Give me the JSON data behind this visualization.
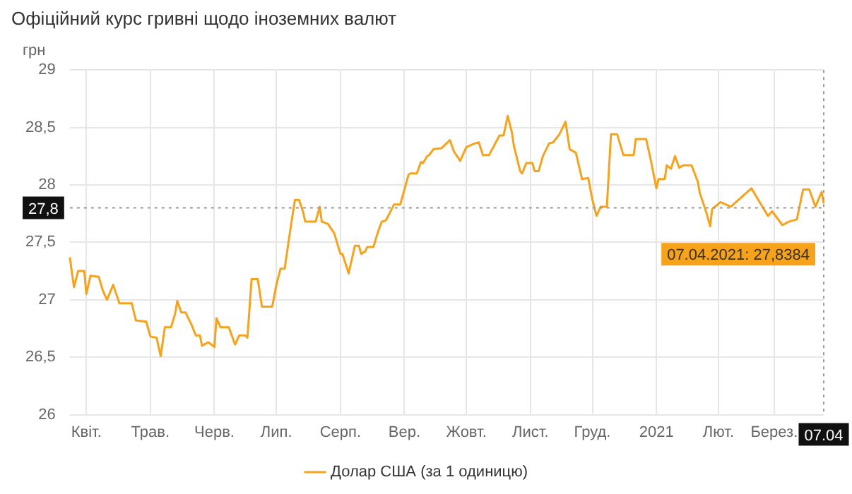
{
  "chart_data": {
    "type": "line",
    "title": "Офіційний курс гривні щодо іноземних валют",
    "ylabel": "грн",
    "categories": [
      null,
      null,
      null,
      null,
      null,
      null,
      null,
      null,
      "Квіт.",
      null,
      null,
      null,
      null,
      null,
      null,
      null,
      null,
      null,
      null,
      null,
      null,
      null,
      null,
      null,
      null,
      null,
      null,
      null,
      null,
      null,
      null,
      null,
      null,
      null,
      null,
      null,
      null,
      null,
      null,
      "Трав.",
      null,
      null,
      null,
      null,
      null,
      null,
      null,
      null,
      null,
      null,
      null,
      null,
      null,
      null,
      null,
      null,
      null,
      null,
      null,
      null,
      null,
      null,
      null,
      null,
      null,
      null,
      null,
      null,
      null,
      null,
      "Черв.",
      null,
      null,
      null,
      null,
      null,
      null,
      null,
      null,
      null,
      null,
      null,
      null,
      null,
      null,
      null,
      null,
      null,
      null,
      null,
      null,
      null,
      null,
      null,
      null,
      null,
      null,
      null,
      null,
      null,
      "Лип.",
      null,
      null,
      null,
      null,
      null,
      null,
      null,
      null,
      null,
      null,
      null,
      null,
      null,
      null,
      null,
      null,
      null,
      null,
      null,
      null,
      null,
      null,
      null,
      null,
      null,
      null,
      null,
      null,
      null,
      null,
      "Серп.",
      null,
      null,
      null,
      null,
      null,
      null,
      null,
      null,
      null,
      null,
      null,
      null,
      null,
      null,
      null,
      null,
      null,
      null,
      null,
      null,
      null,
      null,
      null,
      null,
      null,
      null,
      null,
      null,
      null,
      null,
      "Вер.",
      null,
      null,
      null,
      null,
      null,
      null,
      null,
      null,
      null,
      null,
      null,
      null,
      null,
      null,
      null,
      null,
      null,
      null,
      null,
      null,
      null,
      null,
      null,
      null,
      null,
      null,
      null,
      null,
      null,
      "Жовт.",
      null,
      null,
      null,
      null,
      null,
      null,
      null,
      null,
      null,
      null,
      null,
      null,
      null,
      null,
      null,
      null,
      null,
      null,
      null,
      null,
      null,
      null,
      null,
      null,
      null,
      null,
      null,
      null,
      null,
      null,
      "Лист.",
      null,
      null,
      null,
      null,
      null,
      null,
      null,
      null,
      null,
      null,
      null,
      null,
      null,
      null,
      null,
      null,
      null,
      null,
      null,
      null,
      null,
      null,
      null,
      null,
      null,
      null,
      null,
      null,
      null,
      "Груд.",
      null,
      null,
      null,
      null,
      null,
      null,
      null,
      null,
      null,
      null,
      null,
      null,
      null,
      null,
      null,
      null,
      null,
      null,
      null,
      null,
      null,
      null,
      null,
      null,
      null,
      null,
      null,
      null,
      null,
      null,
      "2021",
      null,
      null,
      null,
      null,
      null,
      null,
      null,
      null,
      null,
      null,
      null,
      null,
      null,
      null,
      null,
      null,
      null,
      null,
      null,
      null,
      null,
      null,
      null,
      null,
      null,
      null,
      null,
      null,
      null,
      "Лют.",
      null,
      null,
      null,
      null,
      null,
      null,
      null,
      null,
      null,
      null,
      null,
      null,
      null,
      null,
      null,
      null,
      null,
      null,
      null,
      null,
      null,
      null,
      null,
      null,
      null,
      null,
      "Берез.",
      null,
      null,
      null,
      null,
      null,
      null,
      null,
      null,
      null,
      null,
      null,
      null,
      null,
      null,
      null,
      null,
      null,
      null,
      null,
      null,
      null,
      null,
      null,
      "07.04"
    ],
    "series": [
      {
        "name": "Долар США (за 1 одиницю)",
        "color": "#f7a21b",
        "values": [
          27.37,
          null,
          27.11,
          null,
          27.25,
          null,
          null,
          27.25,
          27.05,
          null,
          27.21,
          null,
          null,
          null,
          27.2,
          null,
          27.08,
          null,
          27.0,
          null,
          null,
          27.13,
          null,
          null,
          26.97,
          null,
          null,
          null,
          null,
          null,
          26.97,
          null,
          26.82,
          null,
          null,
          null,
          null,
          26.81,
          null,
          26.68,
          null,
          null,
          26.67,
          null,
          26.51,
          null,
          26.76,
          null,
          null,
          26.76,
          null,
          26.88,
          26.99,
          null,
          26.89,
          null,
          26.89,
          null,
          null,
          26.78,
          null,
          26.69,
          null,
          26.69,
          26.6,
          null,
          null,
          26.63,
          null,
          null,
          26.59,
          26.84,
          null,
          26.76,
          null,
          null,
          null,
          26.76,
          null,
          null,
          26.61,
          null,
          26.69,
          null,
          null,
          26.69,
          26.67,
          null,
          27.18,
          null,
          null,
          27.18,
          null,
          26.94,
          null,
          null,
          null,
          null,
          26.94,
          null,
          27.13,
          null,
          27.27,
          null,
          27.27,
          null,
          null,
          27.64,
          null,
          27.87,
          null,
          27.87,
          null,
          27.76,
          27.68,
          null,
          null,
          null,
          null,
          27.68,
          null,
          27.81,
          27.68,
          null,
          null,
          27.66,
          null,
          null,
          27.58,
          null,
          null,
          27.4,
          27.4,
          null,
          null,
          27.23,
          null,
          null,
          27.47,
          null,
          27.47,
          27.4,
          null,
          27.42,
          27.46,
          null,
          null,
          27.46,
          null,
          27.58,
          null,
          27.68,
          null,
          27.69,
          null,
          null,
          null,
          27.83,
          null,
          null,
          27.83,
          null,
          null,
          null,
          28.09,
          28.1,
          null,
          null,
          28.1,
          null,
          28.2,
          28.19,
          null,
          28.25,
          28.26,
          null,
          28.31,
          null,
          null,
          null,
          28.32,
          null,
          null,
          null,
          28.39,
          null,
          28.29,
          null,
          null,
          28.21,
          null,
          null,
          28.33,
          null,
          null,
          null,
          28.36,
          null,
          28.37,
          null,
          28.26,
          null,
          null,
          28.26,
          null,
          null,
          null,
          null,
          28.43,
          null,
          28.43,
          null,
          28.6,
          null,
          28.46,
          28.34,
          null,
          null,
          28.12,
          28.1,
          null,
          28.19,
          null,
          null,
          28.19,
          28.12,
          null,
          28.12,
          null,
          28.25,
          null,
          null,
          28.36,
          null,
          28.37,
          null,
          null,
          28.44,
          null,
          null,
          28.55,
          null,
          28.31,
          null,
          null,
          28.28,
          null,
          null,
          28.05,
          null,
          null,
          28.06,
          null,
          27.87,
          null,
          27.73,
          null,
          27.81,
          null,
          null,
          27.81,
          null,
          28.44,
          null,
          null,
          28.44,
          null,
          null,
          28.26,
          null,
          null,
          null,
          null,
          28.26,
          28.4,
          null,
          null,
          null,
          null,
          28.4,
          null,
          28.24,
          null,
          null,
          27.97,
          28.05,
          null,
          null,
          28.05,
          28.17,
          null,
          28.14,
          null,
          28.25,
          null,
          28.15,
          null,
          28.17,
          null,
          null,
          null,
          28.17,
          null,
          null,
          28.03,
          27.93,
          null,
          null,
          27.77,
          null,
          27.64,
          27.79,
          null,
          null,
          null,
          27.85,
          null,
          null,
          null,
          null,
          27.81,
          null,
          null,
          null,
          null,
          27.89,
          null,
          null,
          null,
          null,
          27.97,
          null,
          null,
          null,
          27.85,
          null,
          null,
          null,
          27.73,
          null,
          27.77,
          null,
          null,
          null,
          null,
          27.65,
          null,
          null,
          27.68,
          null,
          null,
          null,
          27.7,
          null,
          null,
          27.96,
          null,
          null,
          27.96,
          null,
          null,
          27.81,
          null,
          null,
          27.94,
          27.8384
        ]
      }
    ],
    "ylim": [
      26,
      29
    ],
    "yticks": [
      {
        "value": 26,
        "label": "26"
      },
      {
        "value": 26.5,
        "label": "26,5"
      },
      {
        "value": 27,
        "label": "27"
      },
      {
        "value": 27.5,
        "label": "27,5"
      },
      {
        "value": 28,
        "label": "28"
      },
      {
        "value": 28.5,
        "label": "28,5"
      },
      {
        "value": 29,
        "label": "29"
      }
    ],
    "grid": true,
    "legend": "bottom",
    "marker": "none",
    "line_style": "solid",
    "ref_lines": [
      {
        "axis": "y",
        "value": 27.8,
        "label": "27,8",
        "line_style": "dotted"
      },
      {
        "axis": "x",
        "value": "07.04",
        "line_style": "dotted"
      }
    ],
    "annotations": [
      {
        "text": "07.04.2021: 27,8384",
        "x": "07.04",
        "y": 27.8384
      }
    ]
  }
}
